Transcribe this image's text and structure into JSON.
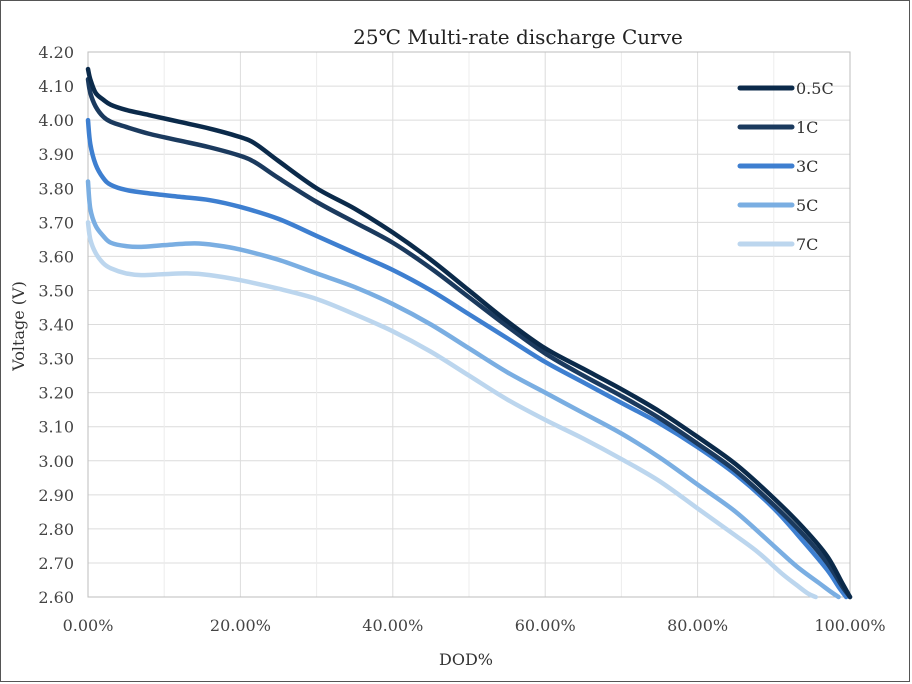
{
  "chart_data": {
    "type": "line",
    "title": "25℃ Multi-rate discharge Curve",
    "xlabel": "DOD%",
    "ylabel": "Voltage (V)",
    "xlim": [
      0,
      100
    ],
    "ylim": [
      2.6,
      4.2
    ],
    "x_ticks": [
      0,
      20,
      40,
      60,
      80,
      100
    ],
    "x_tick_labels": [
      "0.00%",
      "20.00%",
      "40.00%",
      "60.00%",
      "80.00%",
      "100.00%"
    ],
    "y_ticks": [
      2.6,
      2.7,
      2.8,
      2.9,
      3.0,
      3.1,
      3.2,
      3.3,
      3.4,
      3.5,
      3.6,
      3.7,
      3.8,
      3.9,
      4.0,
      4.1,
      4.2
    ],
    "y_tick_labels": [
      "2.60",
      "2.70",
      "2.80",
      "2.90",
      "3.00",
      "3.10",
      "3.20",
      "3.30",
      "3.40",
      "3.50",
      "3.60",
      "3.70",
      "3.80",
      "3.90",
      "4.00",
      "4.10",
      "4.20"
    ],
    "grid": true,
    "legend_position": "top-right",
    "series": [
      {
        "name": "0.5C",
        "color": "#0b2a4a",
        "x": [
          0,
          0.3,
          1,
          2,
          3,
          5,
          8,
          12,
          16,
          20,
          22,
          25,
          30,
          35,
          40,
          45,
          50,
          55,
          60,
          65,
          70,
          75,
          80,
          85,
          90,
          94,
          97,
          99,
          100
        ],
        "y": [
          4.15,
          4.12,
          4.08,
          4.06,
          4.045,
          4.03,
          4.015,
          3.995,
          3.975,
          3.95,
          3.93,
          3.88,
          3.8,
          3.74,
          3.67,
          3.59,
          3.5,
          3.41,
          3.33,
          3.27,
          3.21,
          3.145,
          3.07,
          2.99,
          2.89,
          2.8,
          2.72,
          2.64,
          2.6
        ]
      },
      {
        "name": "1C",
        "color": "#1b3a5e",
        "x": [
          0,
          0.3,
          1,
          2,
          3,
          5,
          8,
          12,
          16,
          20,
          22,
          25,
          30,
          35,
          40,
          45,
          50,
          55,
          60,
          65,
          70,
          75,
          80,
          85,
          90,
          94,
          97,
          99,
          100
        ],
        "y": [
          4.12,
          4.08,
          4.04,
          4.01,
          3.995,
          3.98,
          3.96,
          3.94,
          3.92,
          3.895,
          3.875,
          3.83,
          3.76,
          3.7,
          3.64,
          3.565,
          3.48,
          3.395,
          3.315,
          3.25,
          3.19,
          3.125,
          3.05,
          2.97,
          2.87,
          2.78,
          2.7,
          2.63,
          2.6
        ]
      },
      {
        "name": "3C",
        "color": "#3e7fd0",
        "x": [
          0,
          0.3,
          1,
          2,
          3,
          5,
          8,
          12,
          16,
          20,
          25,
          30,
          35,
          40,
          45,
          50,
          55,
          60,
          65,
          70,
          75,
          80,
          85,
          90,
          94,
          97,
          98.5,
          99.5
        ],
        "y": [
          4.0,
          3.93,
          3.87,
          3.83,
          3.81,
          3.795,
          3.785,
          3.775,
          3.765,
          3.745,
          3.71,
          3.66,
          3.61,
          3.56,
          3.5,
          3.43,
          3.36,
          3.29,
          3.23,
          3.17,
          3.11,
          3.04,
          2.96,
          2.86,
          2.76,
          2.68,
          2.63,
          2.6
        ]
      },
      {
        "name": "5C",
        "color": "#7aaee2",
        "x": [
          0,
          0.3,
          1,
          2,
          3,
          5,
          7,
          10,
          14,
          17,
          20,
          25,
          30,
          35,
          40,
          45,
          50,
          55,
          60,
          65,
          70,
          75,
          80,
          85,
          90,
          93,
          96,
          97.5,
          98.5
        ],
        "y": [
          3.82,
          3.74,
          3.69,
          3.66,
          3.64,
          3.63,
          3.628,
          3.633,
          3.638,
          3.632,
          3.62,
          3.59,
          3.55,
          3.51,
          3.46,
          3.4,
          3.33,
          3.26,
          3.2,
          3.14,
          3.08,
          3.01,
          2.93,
          2.85,
          2.75,
          2.69,
          2.64,
          2.615,
          2.6
        ]
      },
      {
        "name": "7C",
        "color": "#bcd6ee",
        "x": [
          0,
          0.3,
          1,
          2,
          3,
          5,
          7,
          10,
          13,
          16,
          20,
          25,
          30,
          35,
          40,
          45,
          50,
          55,
          60,
          65,
          70,
          75,
          80,
          85,
          88,
          91,
          93,
          94.5,
          95.5
        ],
        "y": [
          3.7,
          3.65,
          3.61,
          3.58,
          3.565,
          3.55,
          3.545,
          3.548,
          3.55,
          3.545,
          3.53,
          3.505,
          3.475,
          3.43,
          3.38,
          3.32,
          3.25,
          3.18,
          3.12,
          3.065,
          3.005,
          2.94,
          2.86,
          2.78,
          2.73,
          2.67,
          2.635,
          2.61,
          2.6
        ]
      }
    ]
  }
}
